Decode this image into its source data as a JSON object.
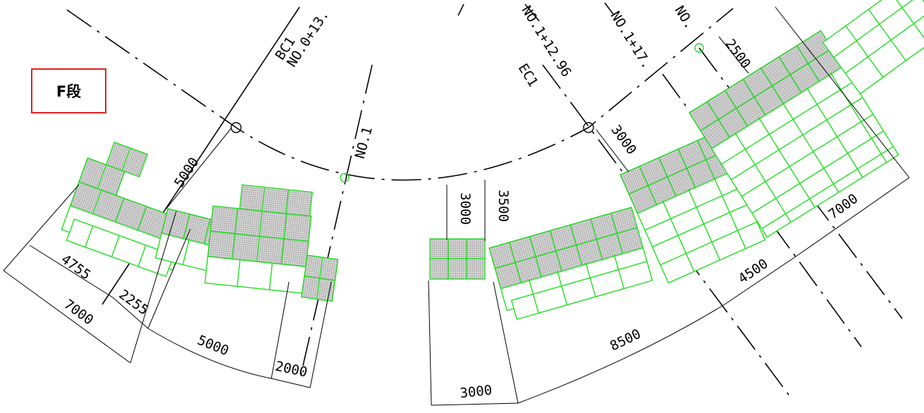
{
  "section_label": "F段",
  "stations": {
    "bc1": "BC1",
    "no_0_13": "NO.0+13.",
    "no_1": "NO.1",
    "ec1": "EC1",
    "no_1_12_96": "NO.1+12.96",
    "no_1_17": "NO.1+17.",
    "no_top": "NO."
  },
  "dimensions": {
    "d_5000_left": "5000",
    "d_4755": "4755",
    "d_7000_left": "7000",
    "d_2255": "2255",
    "d_5000_bottom": "5000",
    "d_2000": "2000",
    "d_3000_a": "3000",
    "d_3500": "3500",
    "d_3000_bottom": "3000",
    "d_8500": "8500",
    "d_3000_right": "3000",
    "d_4500": "4500",
    "d_7000_right": "7000",
    "d_2500": "2500"
  },
  "colors": {
    "block_outline": "#22dd22",
    "label_border": "#e02020",
    "line": "#000000"
  }
}
